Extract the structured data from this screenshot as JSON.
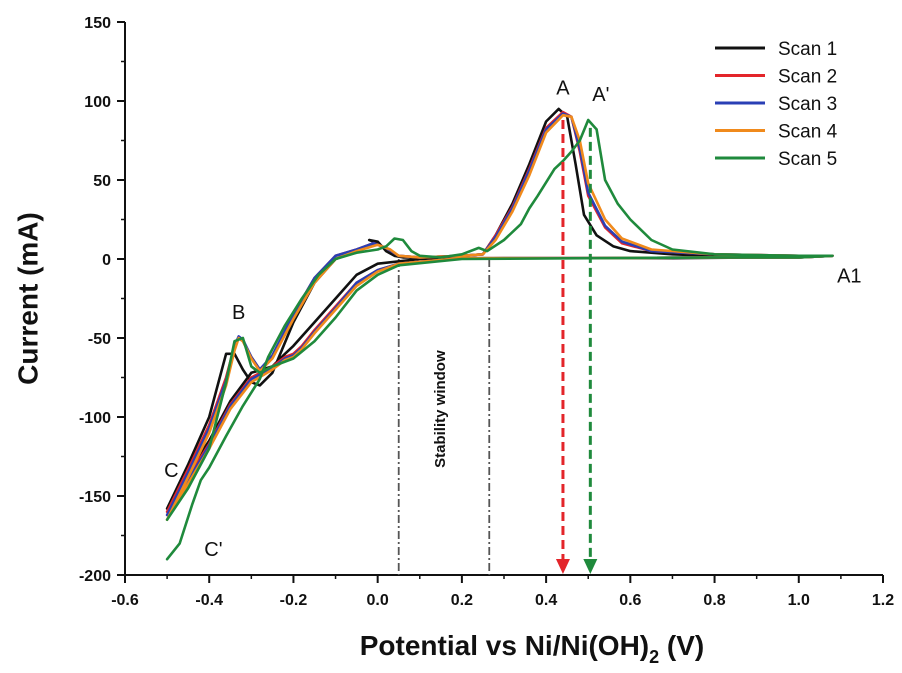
{
  "chart_data": {
    "type": "line",
    "title": "",
    "xlabel": "Potential vs Ni/Ni(OH)",
    "xlabel_subscript": "2",
    "xlabel_suffix": " (V)",
    "ylabel": "Current (mA)",
    "xlim": [
      -0.6,
      1.2
    ],
    "ylim": [
      -200,
      150
    ],
    "xticks": [
      -0.6,
      -0.4,
      -0.2,
      0.0,
      0.2,
      0.4,
      0.6,
      0.8,
      1.0,
      1.2
    ],
    "yticks": [
      -200,
      -150,
      -100,
      -50,
      0,
      50,
      100,
      150
    ],
    "xtick_labels": [
      "-0.6",
      "-0.4",
      "-0.2",
      "0.0",
      "0.2",
      "0.4",
      "0.6",
      "0.8",
      "1.0",
      "1.2"
    ],
    "ytick_labels": [
      "-200",
      "-150",
      "-100",
      "-50",
      "0",
      "50",
      "100",
      "150"
    ],
    "grid": false,
    "legend_position": "top-right",
    "series": [
      {
        "name": "Scan 1",
        "color": "#111111",
        "points": [
          [
            -0.5,
            -158
          ],
          [
            -0.45,
            -130
          ],
          [
            -0.4,
            -100
          ],
          [
            -0.36,
            -60
          ],
          [
            -0.34,
            -60
          ],
          [
            -0.32,
            -70
          ],
          [
            -0.3,
            -78
          ],
          [
            -0.28,
            -80
          ],
          [
            -0.25,
            -72
          ],
          [
            -0.2,
            -40
          ],
          [
            -0.15,
            -15
          ],
          [
            -0.1,
            0
          ],
          [
            -0.05,
            5
          ],
          [
            0.0,
            10
          ],
          [
            -0.02,
            12
          ],
          [
            0.0,
            11
          ],
          [
            0.02,
            5
          ],
          [
            0.04,
            2
          ],
          [
            0.06,
            1
          ],
          [
            0.1,
            1
          ],
          [
            0.2,
            2
          ],
          [
            0.25,
            3
          ],
          [
            0.28,
            15
          ],
          [
            0.32,
            35
          ],
          [
            0.36,
            60
          ],
          [
            0.4,
            87
          ],
          [
            0.43,
            95
          ],
          [
            0.45,
            90
          ],
          [
            0.47,
            60
          ],
          [
            0.49,
            28
          ],
          [
            0.52,
            15
          ],
          [
            0.56,
            8
          ],
          [
            0.6,
            5
          ],
          [
            0.7,
            3
          ],
          [
            0.8,
            2
          ],
          [
            0.9,
            2
          ],
          [
            1.0,
            2
          ],
          [
            1.08,
            2
          ],
          [
            1.0,
            1
          ],
          [
            0.9,
            1
          ],
          [
            0.7,
            0.5
          ],
          [
            0.5,
            0.5
          ],
          [
            0.3,
            0.5
          ],
          [
            0.1,
            0
          ],
          [
            0.0,
            -3
          ],
          [
            -0.05,
            -10
          ],
          [
            -0.1,
            -25
          ],
          [
            -0.15,
            -40
          ],
          [
            -0.2,
            -55
          ],
          [
            -0.22,
            -60
          ],
          [
            -0.25,
            -68
          ],
          [
            -0.3,
            -72
          ],
          [
            -0.35,
            -90
          ],
          [
            -0.4,
            -115
          ],
          [
            -0.45,
            -135
          ],
          [
            -0.5,
            -158
          ]
        ]
      },
      {
        "name": "Scan 2",
        "color": "#e3252a",
        "points": [
          [
            -0.5,
            -160
          ],
          [
            -0.45,
            -133
          ],
          [
            -0.4,
            -105
          ],
          [
            -0.36,
            -75
          ],
          [
            -0.34,
            -55
          ],
          [
            -0.33,
            -50
          ],
          [
            -0.32,
            -52
          ],
          [
            -0.3,
            -62
          ],
          [
            -0.28,
            -70
          ],
          [
            -0.25,
            -62
          ],
          [
            -0.2,
            -35
          ],
          [
            -0.15,
            -12
          ],
          [
            -0.1,
            2
          ],
          [
            -0.05,
            6
          ],
          [
            -0.01,
            10
          ],
          [
            0.02,
            7
          ],
          [
            0.05,
            2
          ],
          [
            0.1,
            1
          ],
          [
            0.2,
            2
          ],
          [
            0.25,
            3
          ],
          [
            0.28,
            15
          ],
          [
            0.32,
            33
          ],
          [
            0.36,
            57
          ],
          [
            0.4,
            83
          ],
          [
            0.44,
            93
          ],
          [
            0.46,
            90
          ],
          [
            0.48,
            68
          ],
          [
            0.5,
            40
          ],
          [
            0.54,
            20
          ],
          [
            0.58,
            10
          ],
          [
            0.65,
            5
          ],
          [
            0.8,
            3
          ],
          [
            1.0,
            2
          ],
          [
            1.08,
            2
          ],
          [
            1.0,
            1
          ],
          [
            0.8,
            1
          ],
          [
            0.5,
            0.5
          ],
          [
            0.2,
            0.5
          ],
          [
            0.05,
            -3
          ],
          [
            0.0,
            -7
          ],
          [
            -0.05,
            -15
          ],
          [
            -0.1,
            -30
          ],
          [
            -0.15,
            -45
          ],
          [
            -0.18,
            -55
          ],
          [
            -0.2,
            -60
          ],
          [
            -0.22,
            -62
          ],
          [
            -0.25,
            -68
          ],
          [
            -0.3,
            -75
          ],
          [
            -0.35,
            -92
          ],
          [
            -0.4,
            -117
          ],
          [
            -0.45,
            -138
          ],
          [
            -0.5,
            -160
          ]
        ]
      },
      {
        "name": "Scan 3",
        "color": "#2a3fb5",
        "points": [
          [
            -0.5,
            -162
          ],
          [
            -0.45,
            -135
          ],
          [
            -0.4,
            -107
          ],
          [
            -0.36,
            -77
          ],
          [
            -0.34,
            -55
          ],
          [
            -0.33,
            -49
          ],
          [
            -0.32,
            -51
          ],
          [
            -0.3,
            -62
          ],
          [
            -0.28,
            -70
          ],
          [
            -0.25,
            -61
          ],
          [
            -0.2,
            -35
          ],
          [
            -0.15,
            -12
          ],
          [
            -0.1,
            2
          ],
          [
            -0.05,
            6
          ],
          [
            -0.01,
            10
          ],
          [
            0.02,
            7
          ],
          [
            0.05,
            2
          ],
          [
            0.1,
            1
          ],
          [
            0.2,
            2
          ],
          [
            0.25,
            3
          ],
          [
            0.28,
            14
          ],
          [
            0.32,
            32
          ],
          [
            0.36,
            56
          ],
          [
            0.4,
            82
          ],
          [
            0.44,
            92
          ],
          [
            0.46,
            90
          ],
          [
            0.48,
            70
          ],
          [
            0.5,
            42
          ],
          [
            0.54,
            21
          ],
          [
            0.58,
            11
          ],
          [
            0.65,
            5
          ],
          [
            0.8,
            3
          ],
          [
            1.0,
            2
          ],
          [
            1.08,
            2
          ],
          [
            1.0,
            1
          ],
          [
            0.8,
            1
          ],
          [
            0.5,
            0.5
          ],
          [
            0.2,
            0.5
          ],
          [
            0.05,
            -3
          ],
          [
            0.0,
            -7
          ],
          [
            -0.05,
            -15
          ],
          [
            -0.1,
            -31
          ],
          [
            -0.15,
            -46
          ],
          [
            -0.18,
            -56
          ],
          [
            -0.2,
            -61
          ],
          [
            -0.22,
            -63
          ],
          [
            -0.25,
            -69
          ],
          [
            -0.3,
            -76
          ],
          [
            -0.35,
            -93
          ],
          [
            -0.4,
            -118
          ],
          [
            -0.45,
            -140
          ],
          [
            -0.5,
            -162
          ]
        ]
      },
      {
        "name": "Scan 4",
        "color": "#f08a1c",
        "points": [
          [
            -0.5,
            -165
          ],
          [
            -0.45,
            -138
          ],
          [
            -0.4,
            -110
          ],
          [
            -0.36,
            -80
          ],
          [
            -0.34,
            -58
          ],
          [
            -0.33,
            -50
          ],
          [
            -0.32,
            -52
          ],
          [
            -0.3,
            -63
          ],
          [
            -0.28,
            -71
          ],
          [
            -0.25,
            -63
          ],
          [
            -0.2,
            -38
          ],
          [
            -0.15,
            -15
          ],
          [
            -0.1,
            0
          ],
          [
            -0.05,
            5
          ],
          [
            0.0,
            9
          ],
          [
            0.03,
            6
          ],
          [
            0.05,
            2
          ],
          [
            0.1,
            1
          ],
          [
            0.2,
            2
          ],
          [
            0.25,
            3
          ],
          [
            0.28,
            12
          ],
          [
            0.32,
            30
          ],
          [
            0.36,
            53
          ],
          [
            0.4,
            80
          ],
          [
            0.44,
            91
          ],
          [
            0.46,
            90
          ],
          [
            0.48,
            75
          ],
          [
            0.5,
            48
          ],
          [
            0.54,
            25
          ],
          [
            0.58,
            13
          ],
          [
            0.65,
            6
          ],
          [
            0.8,
            3
          ],
          [
            1.0,
            2
          ],
          [
            1.08,
            2
          ],
          [
            1.0,
            1
          ],
          [
            0.8,
            1
          ],
          [
            0.5,
            0.5
          ],
          [
            0.2,
            0.5
          ],
          [
            0.05,
            -3
          ],
          [
            0.0,
            -8
          ],
          [
            -0.05,
            -17
          ],
          [
            -0.1,
            -32
          ],
          [
            -0.15,
            -47
          ],
          [
            -0.18,
            -57
          ],
          [
            -0.2,
            -62
          ],
          [
            -0.22,
            -64
          ],
          [
            -0.25,
            -70
          ],
          [
            -0.3,
            -78
          ],
          [
            -0.35,
            -95
          ],
          [
            -0.4,
            -120
          ],
          [
            -0.45,
            -142
          ],
          [
            -0.5,
            -165
          ]
        ]
      },
      {
        "name": "Scan 5",
        "color": "#1f8a3c",
        "points": [
          [
            -0.5,
            -190
          ],
          [
            -0.47,
            -180
          ],
          [
            -0.44,
            -155
          ],
          [
            -0.42,
            -140
          ],
          [
            -0.4,
            -132
          ],
          [
            -0.36,
            -112
          ],
          [
            -0.32,
            -93
          ],
          [
            -0.28,
            -76
          ],
          [
            -0.26,
            -62
          ],
          [
            -0.22,
            -42
          ],
          [
            -0.18,
            -25
          ],
          [
            -0.14,
            -10
          ],
          [
            -0.1,
            0
          ],
          [
            -0.05,
            4
          ],
          [
            0.0,
            6
          ],
          [
            0.02,
            8
          ],
          [
            0.04,
            13
          ],
          [
            0.06,
            12
          ],
          [
            0.08,
            5
          ],
          [
            0.1,
            2
          ],
          [
            0.15,
            1
          ],
          [
            0.2,
            3
          ],
          [
            0.24,
            7
          ],
          [
            0.26,
            5
          ],
          [
            0.3,
            12
          ],
          [
            0.34,
            22
          ],
          [
            0.36,
            32
          ],
          [
            0.38,
            40
          ],
          [
            0.42,
            57
          ],
          [
            0.44,
            62
          ],
          [
            0.46,
            68
          ],
          [
            0.48,
            75
          ],
          [
            0.5,
            88
          ],
          [
            0.52,
            82
          ],
          [
            0.54,
            50
          ],
          [
            0.57,
            35
          ],
          [
            0.6,
            25
          ],
          [
            0.65,
            12
          ],
          [
            0.7,
            6
          ],
          [
            0.8,
            3
          ],
          [
            1.0,
            2
          ],
          [
            1.08,
            2
          ],
          [
            1.0,
            1
          ],
          [
            0.8,
            1
          ],
          [
            0.5,
            0.5
          ],
          [
            0.2,
            0
          ],
          [
            0.05,
            -4
          ],
          [
            0.0,
            -10
          ],
          [
            -0.05,
            -20
          ],
          [
            -0.1,
            -37
          ],
          [
            -0.15,
            -52
          ],
          [
            -0.2,
            -63
          ],
          [
            -0.25,
            -68
          ],
          [
            -0.28,
            -72
          ],
          [
            -0.3,
            -68
          ],
          [
            -0.32,
            -50
          ],
          [
            -0.34,
            -52
          ],
          [
            -0.36,
            -78
          ],
          [
            -0.4,
            -120
          ],
          [
            -0.45,
            -145
          ],
          [
            -0.5,
            -165
          ]
        ]
      }
    ],
    "annotations": [
      {
        "text": "A",
        "x": 0.44,
        "y": 104
      },
      {
        "text": "A'",
        "x": 0.53,
        "y": 100
      },
      {
        "text": "A1",
        "x": 1.12,
        "y": -15
      },
      {
        "text": "B",
        "x": -0.33,
        "y": -38
      },
      {
        "text": "C",
        "x": -0.49,
        "y": -138
      },
      {
        "text": "C'",
        "x": -0.39,
        "y": -188
      },
      {
        "text": "Stability window",
        "x": 0.16,
        "y": -95,
        "rotate": -90
      }
    ],
    "vertical_lines": [
      {
        "x": 0.05,
        "y_from": 0,
        "y_to": -200,
        "style": "dashdot",
        "color": "#555555"
      },
      {
        "x": 0.265,
        "y_from": 0,
        "y_to": -200,
        "style": "dashdot",
        "color": "#555555"
      }
    ],
    "arrows": [
      {
        "x": 0.44,
        "y_from": 88,
        "y_to": -200,
        "color": "#e3252a"
      },
      {
        "x": 0.505,
        "y_from": 83,
        "y_to": -200,
        "color": "#1f8a3c"
      }
    ]
  }
}
